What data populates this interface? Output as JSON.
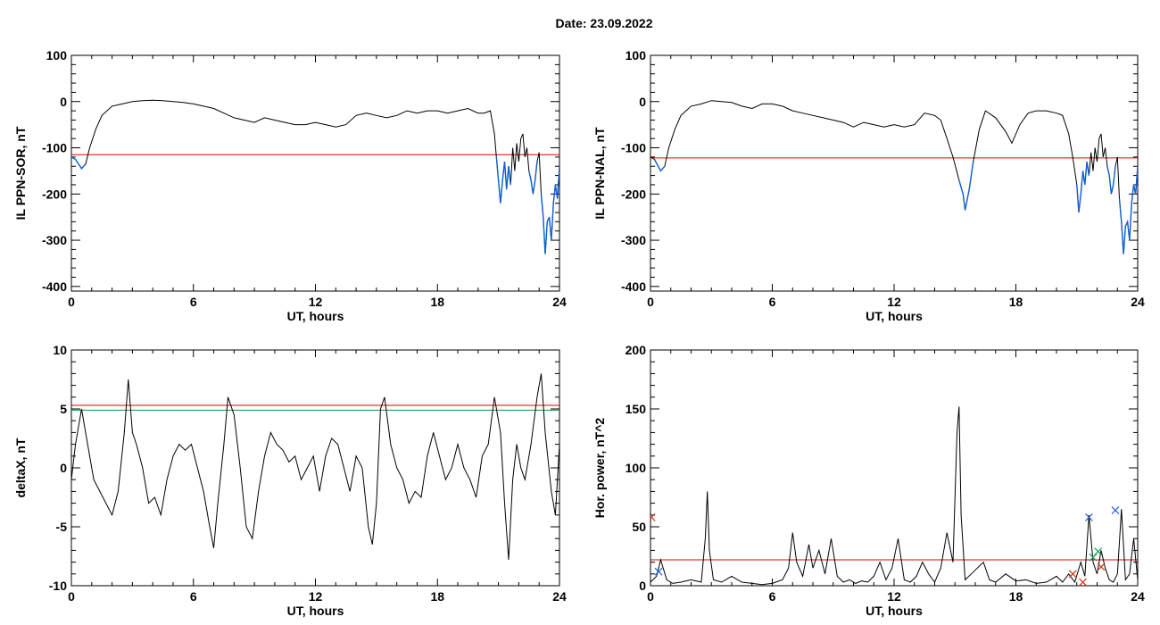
{
  "date_title": "Date:  23.09.2022",
  "colors": {
    "trace": "#000000",
    "threshold": "#e00000",
    "exceed": "#1060d0",
    "green_line": "#109050",
    "marker_blue": "#2060d0",
    "marker_green": "#10a050",
    "marker_red": "#d03010"
  },
  "chart_data": [
    {
      "id": "ppn-sor",
      "type": "line",
      "title": "",
      "xlabel": "UT, hours",
      "ylabel": "IL PPN-SOR, nT",
      "xlim": [
        0,
        24
      ],
      "ylim": [
        -410,
        100
      ],
      "xticks": [
        0,
        6,
        12,
        18,
        24
      ],
      "yticks": [
        -400,
        -300,
        -200,
        -100,
        0,
        100
      ],
      "threshold": -115,
      "grid": false,
      "series": [
        {
          "x": [
            0,
            0.2,
            0.5,
            0.7,
            0.9,
            1.2,
            1.5,
            2.0,
            2.5,
            3.0,
            3.5,
            4.0,
            4.5,
            5.0,
            5.5,
            6.0,
            6.5,
            7.0,
            7.5,
            8.0,
            8.5,
            9.0,
            9.5,
            10.0,
            10.5,
            11.0,
            11.5,
            12.0,
            12.5,
            13.0,
            13.5,
            14.0,
            14.5,
            15.0,
            15.5,
            16.0,
            16.5,
            17.0,
            17.5,
            18.0,
            18.5,
            19.0,
            19.5,
            20.0,
            20.3,
            20.6,
            20.8,
            20.9,
            21.0,
            21.1,
            21.2,
            21.3,
            21.4,
            21.5,
            21.6,
            21.7,
            21.8,
            21.9,
            22.0,
            22.1,
            22.2,
            22.3,
            22.4,
            22.5,
            22.6,
            22.7,
            22.8,
            22.9,
            23.0,
            23.1,
            23.2,
            23.3,
            23.4,
            23.5,
            23.6,
            23.7,
            23.8,
            23.9,
            24.0
          ],
          "y": [
            -120,
            -125,
            -145,
            -135,
            -100,
            -60,
            -30,
            -10,
            -5,
            0,
            2,
            3,
            2,
            0,
            -2,
            -5,
            -10,
            -15,
            -25,
            -35,
            -40,
            -45,
            -35,
            -40,
            -45,
            -50,
            -50,
            -45,
            -50,
            -55,
            -50,
            -30,
            -25,
            -30,
            -35,
            -30,
            -20,
            -25,
            -20,
            -20,
            -25,
            -20,
            -15,
            -25,
            -25,
            -20,
            -70,
            -120,
            -170,
            -220,
            -170,
            -130,
            -190,
            -140,
            -180,
            -100,
            -150,
            -90,
            -130,
            -80,
            -70,
            -120,
            -100,
            -150,
            -170,
            -200,
            -170,
            -130,
            -110,
            -200,
            -250,
            -330,
            -260,
            -250,
            -300,
            -220,
            -180,
            -210,
            -140
          ]
        }
      ]
    },
    {
      "id": "ppn-nal",
      "type": "line",
      "title": "",
      "xlabel": "UT, hours",
      "ylabel": "IL PPN-NAL, nT",
      "xlim": [
        0,
        24
      ],
      "ylim": [
        -410,
        100
      ],
      "xticks": [
        0,
        6,
        12,
        18,
        24
      ],
      "yticks": [
        -400,
        -300,
        -200,
        -100,
        0,
        100
      ],
      "threshold": -122,
      "grid": false,
      "series": [
        {
          "x": [
            0,
            0.2,
            0.5,
            0.7,
            0.9,
            1.2,
            1.5,
            2.0,
            2.5,
            3.0,
            3.5,
            4.0,
            4.5,
            5.0,
            5.5,
            6.0,
            6.5,
            7.0,
            7.5,
            8.0,
            8.5,
            9.0,
            9.5,
            10.0,
            10.5,
            11.0,
            11.5,
            12.0,
            12.5,
            13.0,
            13.5,
            14.0,
            14.3,
            14.6,
            14.9,
            15.2,
            15.4,
            15.5,
            15.7,
            15.9,
            16.2,
            16.5,
            17.0,
            17.5,
            17.8,
            18.2,
            18.6,
            19.0,
            19.5,
            20.0,
            20.3,
            20.6,
            20.8,
            21.0,
            21.1,
            21.2,
            21.3,
            21.4,
            21.5,
            21.6,
            21.7,
            21.8,
            21.9,
            22.0,
            22.1,
            22.2,
            22.3,
            22.4,
            22.5,
            22.6,
            22.7,
            22.8,
            22.9,
            23.0,
            23.1,
            23.2,
            23.3,
            23.4,
            23.5,
            23.6,
            23.7,
            23.8,
            23.9,
            24.0
          ],
          "y": [
            -120,
            -125,
            -150,
            -140,
            -100,
            -60,
            -30,
            -10,
            -5,
            2,
            0,
            -2,
            -10,
            -15,
            -5,
            -5,
            -10,
            -20,
            -25,
            -30,
            -35,
            -40,
            -45,
            -55,
            -45,
            -50,
            -55,
            -50,
            -55,
            -50,
            -25,
            -30,
            -40,
            -80,
            -120,
            -170,
            -200,
            -235,
            -190,
            -130,
            -60,
            -20,
            -35,
            -65,
            -90,
            -50,
            -25,
            -20,
            -20,
            -25,
            -30,
            -70,
            -120,
            -180,
            -240,
            -200,
            -150,
            -180,
            -130,
            -160,
            -110,
            -150,
            -100,
            -130,
            -80,
            -70,
            -120,
            -100,
            -140,
            -160,
            -200,
            -180,
            -140,
            -120,
            -210,
            -260,
            -330,
            -270,
            -260,
            -300,
            -220,
            -180,
            -200,
            -140
          ]
        }
      ]
    },
    {
      "id": "deltax",
      "type": "line",
      "title": "",
      "xlabel": "UT, hours",
      "ylabel": "deltaX, nT",
      "xlim": [
        0,
        24
      ],
      "ylim": [
        -10,
        10
      ],
      "xticks": [
        0,
        6,
        12,
        18,
        24
      ],
      "yticks": [
        -10,
        -5,
        0,
        5,
        10
      ],
      "threshold": 5.3,
      "green_line": 4.9,
      "grid": false,
      "series": [
        {
          "x": [
            0,
            0.2,
            0.5,
            0.8,
            1.1,
            1.4,
            1.7,
            2.0,
            2.3,
            2.6,
            2.8,
            3.0,
            3.2,
            3.5,
            3.8,
            4.1,
            4.4,
            4.7,
            5.0,
            5.3,
            5.6,
            5.9,
            6.2,
            6.5,
            6.8,
            7.0,
            7.2,
            7.5,
            7.7,
            8.0,
            8.3,
            8.6,
            8.9,
            9.2,
            9.5,
            9.8,
            10.1,
            10.4,
            10.7,
            11.0,
            11.3,
            11.6,
            11.9,
            12.2,
            12.5,
            12.8,
            13.1,
            13.4,
            13.7,
            14.0,
            14.3,
            14.6,
            14.8,
            15.0,
            15.2,
            15.4,
            15.7,
            16.0,
            16.3,
            16.6,
            16.9,
            17.2,
            17.5,
            17.8,
            18.1,
            18.4,
            18.7,
            19.0,
            19.3,
            19.6,
            19.9,
            20.2,
            20.5,
            20.8,
            21.1,
            21.3,
            21.5,
            21.7,
            21.9,
            22.1,
            22.3,
            22.6,
            22.9,
            23.1,
            23.3,
            23.6,
            23.8,
            24.0
          ],
          "y": [
            -1,
            2,
            5,
            2,
            -1,
            -2,
            -3,
            -4,
            -2,
            3,
            7.5,
            3,
            2,
            0,
            -3,
            -2.5,
            -4,
            -1,
            1,
            2,
            1.5,
            2,
            0,
            -2,
            -5,
            -6.8,
            -3,
            2,
            6,
            4.5,
            0,
            -5,
            -6,
            -2,
            1,
            3,
            2,
            1.5,
            0.5,
            1,
            -1,
            0,
            1,
            -2,
            1,
            2.5,
            2,
            0,
            -2,
            1,
            0,
            -5,
            -6.5,
            -3,
            5,
            6,
            2,
            0,
            -1,
            -3,
            -2,
            -2.5,
            1,
            3,
            1,
            -1,
            0,
            2,
            0,
            -1,
            -2.5,
            1,
            2,
            6,
            3,
            -3,
            -7.8,
            -1,
            2,
            0,
            -1,
            2,
            6,
            8,
            3,
            -2,
            -4,
            2
          ]
        }
      ]
    },
    {
      "id": "hor-power",
      "type": "line",
      "title": "",
      "xlabel": "UT, hours",
      "ylabel": "Hor. power, nT^2",
      "xlim": [
        0,
        24
      ],
      "ylim": [
        0,
        200
      ],
      "xticks": [
        0,
        6,
        12,
        18,
        24
      ],
      "yticks": [
        0,
        50,
        100,
        150,
        200
      ],
      "threshold": 22,
      "grid": false,
      "series": [
        {
          "x": [
            0,
            0.3,
            0.5,
            0.8,
            1.1,
            1.5,
            2.0,
            2.5,
            2.7,
            2.8,
            2.9,
            3.1,
            3.5,
            4.0,
            4.5,
            5.0,
            5.5,
            6.0,
            6.5,
            6.8,
            7.0,
            7.2,
            7.5,
            7.8,
            8.0,
            8.3,
            8.6,
            8.9,
            9.2,
            9.5,
            9.8,
            10.1,
            10.4,
            10.7,
            11.0,
            11.3,
            11.6,
            11.9,
            12.2,
            12.5,
            12.8,
            13.1,
            13.4,
            13.7,
            14.0,
            14.3,
            14.6,
            14.9,
            15.1,
            15.2,
            15.3,
            15.5,
            15.8,
            16.1,
            16.4,
            16.7,
            17.0,
            17.5,
            18.0,
            18.5,
            19.0,
            19.5,
            20.0,
            20.3,
            20.6,
            20.9,
            21.2,
            21.4,
            21.6,
            21.8,
            22.0,
            22.2,
            22.4,
            22.6,
            22.8,
            23.0,
            23.2,
            23.4,
            23.6,
            23.8,
            24.0
          ],
          "y": [
            3,
            8,
            22,
            5,
            2,
            3,
            5,
            3,
            40,
            80,
            30,
            5,
            3,
            8,
            3,
            2,
            1,
            2,
            5,
            15,
            45,
            20,
            8,
            35,
            15,
            30,
            10,
            40,
            8,
            3,
            5,
            2,
            4,
            3,
            8,
            20,
            5,
            15,
            40,
            5,
            3,
            8,
            20,
            10,
            3,
            15,
            45,
            20,
            130,
            152,
            60,
            5,
            10,
            15,
            20,
            5,
            3,
            10,
            4,
            5,
            2,
            3,
            8,
            3,
            10,
            3,
            20,
            8,
            60,
            20,
            10,
            30,
            15,
            5,
            3,
            10,
            65,
            5,
            10,
            40,
            5
          ]
        }
      ],
      "markers": [
        {
          "x": 0.4,
          "y": 12,
          "color": "#2060d0"
        },
        {
          "x": 21.6,
          "y": 58,
          "color": "#2060d0"
        },
        {
          "x": 22.9,
          "y": 64,
          "color": "#2060d0"
        },
        {
          "x": 21.8,
          "y": 24,
          "color": "#10a050"
        },
        {
          "x": 22.05,
          "y": 29,
          "color": "#10a050"
        },
        {
          "x": 20.8,
          "y": 10,
          "color": "#d03010"
        },
        {
          "x": 21.3,
          "y": 3,
          "color": "#d03010"
        },
        {
          "x": 22.2,
          "y": 16,
          "color": "#d03010"
        },
        {
          "x": 0.05,
          "y": 58,
          "color": "#d03010"
        }
      ]
    }
  ]
}
